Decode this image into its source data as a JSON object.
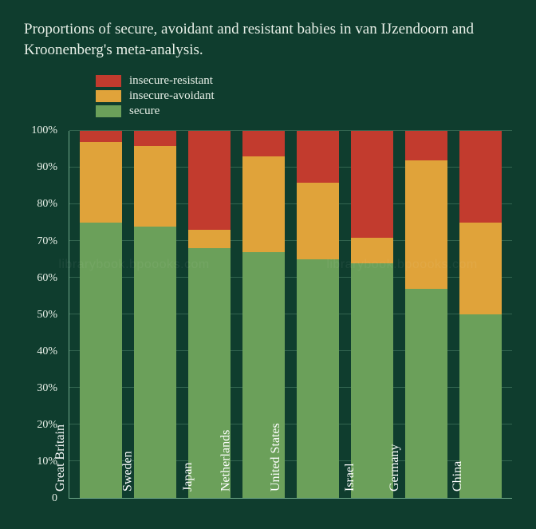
{
  "chart": {
    "type": "stacked-bar",
    "title": "Proportions of secure, avoidant and resistant babies in van IJzendoorn and Kroonenberg's meta-analysis.",
    "title_fontsize": 19,
    "title_color": "#e8f0e8",
    "background_color": "#0f3d2e",
    "axis_color": "#6fa88a",
    "grid_color": "rgba(111,168,138,0.38)",
    "text_color": "#e8f0e8",
    "bar_label_color": "#ffffff",
    "bar_label_fontsize": 16,
    "ylim": [
      0,
      100
    ],
    "ytick_step": 10,
    "y_ticks": [
      "0",
      "10%",
      "20%",
      "30%",
      "40%",
      "50%",
      "60%",
      "70%",
      "80%",
      "90%",
      "100%"
    ],
    "legend_fontsize": 15,
    "legend": [
      {
        "key": "resistant",
        "label": "insecure-resistant",
        "color": "#c23b2e"
      },
      {
        "key": "avoidant",
        "label": "insecure-avoidant",
        "color": "#e0a33a"
      },
      {
        "key": "secure",
        "label": "secure",
        "color": "#6ba05a"
      }
    ],
    "categories": [
      {
        "label": "Great Britain",
        "secure": 75,
        "avoidant": 22,
        "resistant": 3
      },
      {
        "label": "Sweden",
        "secure": 74,
        "avoidant": 22,
        "resistant": 4
      },
      {
        "label": "Japan",
        "secure": 68,
        "avoidant": 5,
        "resistant": 27
      },
      {
        "label": "Netherlands",
        "secure": 67,
        "avoidant": 26,
        "resistant": 7
      },
      {
        "label": "United States",
        "secure": 65,
        "avoidant": 21,
        "resistant": 14
      },
      {
        "label": "Israel",
        "secure": 64,
        "avoidant": 7,
        "resistant": 29
      },
      {
        "label": "Germany",
        "secure": 57,
        "avoidant": 35,
        "resistant": 8
      },
      {
        "label": "China",
        "secure": 50,
        "avoidant": 25,
        "resistant": 25
      }
    ],
    "bar_width_ratio": 0.78
  },
  "watermark": "librarybook.bpoooks.com"
}
